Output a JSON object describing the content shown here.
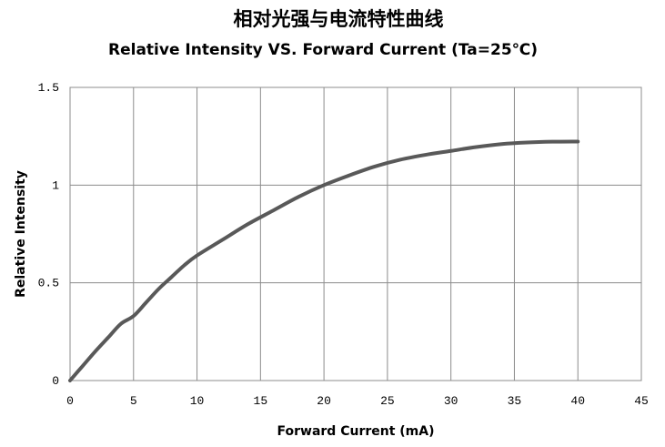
{
  "chart_data": {
    "type": "line",
    "title": "相对光强与电流特性曲线",
    "subtitle": "Relative Intensity VS. Forward Current  (Ta=25℃)",
    "xlabel": "Forward Current (mA)",
    "ylabel": "Relative  Intensity",
    "xlim": [
      0,
      45
    ],
    "ylim": [
      0,
      1.5
    ],
    "xticks": [
      0,
      5,
      10,
      15,
      20,
      25,
      30,
      35,
      40,
      45
    ],
    "yticks": [
      0,
      0.5,
      1,
      1.5
    ],
    "ytick_labels": [
      "0",
      "0.5",
      "1",
      "1.5"
    ],
    "grid": true,
    "legend": "none",
    "series": [
      {
        "color": "#595959",
        "x": [
          0,
          1,
          2,
          3,
          4,
          5,
          6,
          7,
          8,
          9,
          10,
          12,
          14,
          16,
          18,
          20,
          22,
          24,
          26,
          28,
          30,
          32,
          34,
          36,
          38,
          40
        ],
        "y": [
          0,
          0.075,
          0.15,
          0.22,
          0.29,
          0.33,
          0.4,
          0.47,
          0.53,
          0.59,
          0.64,
          0.72,
          0.8,
          0.87,
          0.94,
          1.0,
          1.05,
          1.095,
          1.13,
          1.155,
          1.175,
          1.195,
          1.21,
          1.218,
          1.222,
          1.223
        ]
      }
    ]
  }
}
